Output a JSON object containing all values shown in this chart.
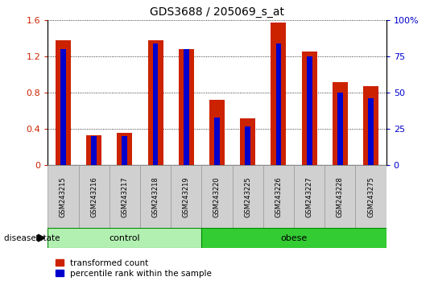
{
  "title": "GDS3688 / 205069_s_at",
  "samples": [
    "GSM243215",
    "GSM243216",
    "GSM243217",
    "GSM243218",
    "GSM243219",
    "GSM243220",
    "GSM243225",
    "GSM243226",
    "GSM243227",
    "GSM243228",
    "GSM243275"
  ],
  "transformed_count": [
    1.38,
    0.33,
    0.36,
    1.38,
    1.28,
    0.72,
    0.52,
    1.57,
    1.25,
    0.92,
    0.87
  ],
  "percentile_rank": [
    80,
    20,
    20,
    84,
    80,
    33,
    27,
    84,
    75,
    50,
    46
  ],
  "groups": [
    {
      "label": "control",
      "start": 0,
      "end": 5,
      "color": "#b2f0b2"
    },
    {
      "label": "obese",
      "start": 5,
      "end": 11,
      "color": "#33cc33"
    }
  ],
  "ylim_left": [
    0,
    1.6
  ],
  "ylim_right": [
    0,
    100
  ],
  "yticks_left": [
    0,
    0.4,
    0.8,
    1.2,
    1.6
  ],
  "yticks_right": [
    0,
    25,
    50,
    75,
    100
  ],
  "ytick_labels_left": [
    "0",
    "0.4",
    "0.8",
    "1.2",
    "1.6"
  ],
  "ytick_labels_right": [
    "0",
    "25",
    "50",
    "75",
    "100%"
  ],
  "bar_color_red": "#cc2200",
  "bar_color_blue": "#0000cc",
  "red_bar_width": 0.5,
  "blue_bar_width": 0.18,
  "label_red": "transformed count",
  "label_blue": "percentile rank within the sample",
  "disease_state_label": "disease state",
  "sample_box_color": "#d0d0d0",
  "sample_box_edge": "#999999"
}
